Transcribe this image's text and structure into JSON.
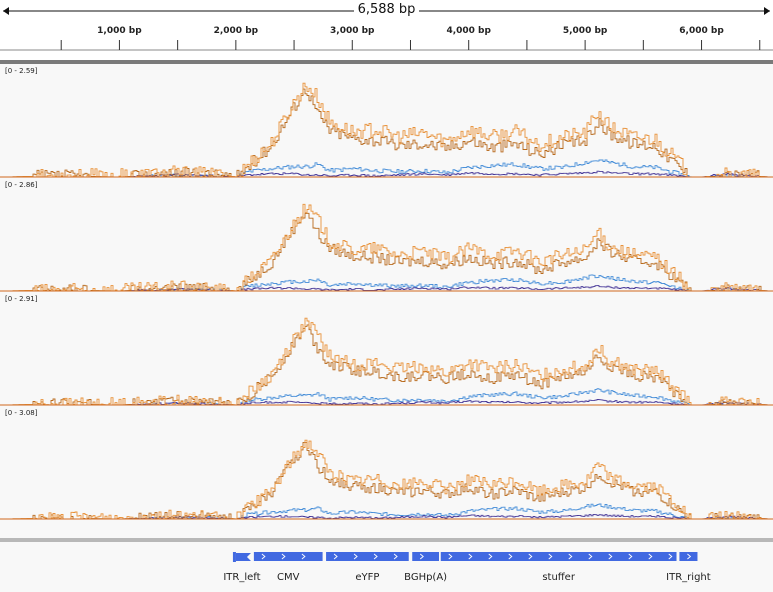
{
  "ruler": {
    "span_label": "6,588 bp",
    "ticks": [
      {
        "bp": 1000,
        "label": "1,000 bp"
      },
      {
        "bp": 2000,
        "label": "2,000 bp"
      },
      {
        "bp": 3000,
        "label": "3,000 bp"
      },
      {
        "bp": 4000,
        "label": "4,000 bp"
      },
      {
        "bp": 5000,
        "label": "5,000 bp"
      },
      {
        "bp": 6000,
        "label": "6,000 bp"
      }
    ],
    "minor_ticks_bp": [
      500,
      1500,
      2500,
      3500,
      4500,
      5500,
      6500
    ]
  },
  "tracks": [
    {
      "range_label": "[0 - 2.59]",
      "max": 2.59
    },
    {
      "range_label": "[0 - 2.86]",
      "max": 2.86
    },
    {
      "range_label": "[0 - 2.91]",
      "max": 2.91
    },
    {
      "range_label": "[0 - 3.08]",
      "max": 3.08
    }
  ],
  "colors": {
    "coverage_orange": "#e8923a",
    "coverage_dark_orange": "#b86a1c",
    "coverage_blue": "#4a90d9",
    "coverage_purple": "#4b3c9a",
    "feature_blue": "#4169e1",
    "baseline": "#d0691e"
  },
  "chart_data": {
    "type": "area",
    "x_unit": "bp",
    "xlim": [
      0,
      6588
    ],
    "series_profile": {
      "x": [
        0,
        500,
        1000,
        1500,
        1800,
        2000,
        2100,
        2300,
        2500,
        2600,
        2700,
        2800,
        3000,
        3200,
        3400,
        3600,
        3800,
        4000,
        4200,
        4400,
        4600,
        4800,
        5000,
        5100,
        5200,
        5400,
        5600,
        5800,
        5900,
        6000,
        6200,
        6400,
        6588
      ],
      "orange_fraction": [
        0.0,
        0.01,
        0.01,
        0.04,
        0.02,
        0.0,
        0.12,
        0.32,
        0.72,
        0.88,
        0.75,
        0.52,
        0.43,
        0.45,
        0.38,
        0.42,
        0.34,
        0.45,
        0.38,
        0.43,
        0.31,
        0.38,
        0.42,
        0.62,
        0.48,
        0.38,
        0.36,
        0.14,
        0.0,
        0.0,
        0.02,
        0.01,
        0.0
      ],
      "dark_orange_fraction": [
        0.0,
        0.01,
        0.0,
        0.03,
        0.02,
        0.0,
        0.1,
        0.3,
        0.68,
        0.85,
        0.6,
        0.45,
        0.37,
        0.35,
        0.3,
        0.32,
        0.28,
        0.35,
        0.28,
        0.32,
        0.22,
        0.3,
        0.35,
        0.52,
        0.42,
        0.32,
        0.3,
        0.1,
        0.0,
        0.0,
        0.01,
        0.01,
        0.0
      ],
      "blue_fraction": [
        0.0,
        0.0,
        0.0,
        0.01,
        0.01,
        0.0,
        0.05,
        0.08,
        0.1,
        0.1,
        0.12,
        0.06,
        0.08,
        0.06,
        0.05,
        0.06,
        0.04,
        0.09,
        0.11,
        0.12,
        0.08,
        0.09,
        0.14,
        0.16,
        0.14,
        0.1,
        0.09,
        0.03,
        0.0,
        0.0,
        0.01,
        0.0,
        0.0
      ],
      "purple_fraction": [
        0.0,
        0.0,
        0.0,
        0.02,
        0.01,
        0.0,
        0.02,
        0.03,
        0.03,
        0.02,
        0.02,
        0.01,
        0.02,
        0.01,
        0.02,
        0.03,
        0.02,
        0.04,
        0.03,
        0.03,
        0.02,
        0.03,
        0.04,
        0.05,
        0.04,
        0.03,
        0.03,
        0.01,
        0.0,
        0.0,
        0.03,
        0.01,
        0.0
      ]
    }
  },
  "features": [
    {
      "name": "ITR_left",
      "start": 1975,
      "end": 2130,
      "kind": "flag"
    },
    {
      "name": "CMV",
      "start": 2155,
      "end": 2745,
      "kind": "arrow"
    },
    {
      "name": "eYFP",
      "start": 2775,
      "end": 3485,
      "kind": "arrow"
    },
    {
      "name": "BGHp(A)",
      "start": 3515,
      "end": 3745,
      "kind": "arrow"
    },
    {
      "name": "stuffer",
      "start": 3760,
      "end": 5785,
      "kind": "arrow"
    },
    {
      "name": "ITR_right",
      "start": 5810,
      "end": 5965,
      "kind": "arrow"
    }
  ]
}
